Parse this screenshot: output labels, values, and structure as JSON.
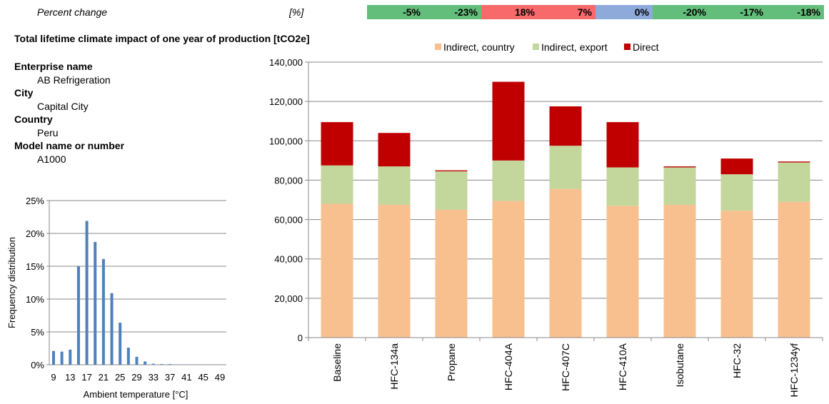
{
  "percent_change": {
    "label": "Percent change",
    "unit": "[%]",
    "colors": {
      "green": "#63be7b",
      "red": "#f8696b",
      "blue": "#8eaadb"
    },
    "cells": [
      {
        "text": "-5%",
        "color": "green"
      },
      {
        "text": "-23%",
        "color": "green"
      },
      {
        "text": "18%",
        "color": "red"
      },
      {
        "text": "7%",
        "color": "red"
      },
      {
        "text": "0%",
        "color": "blue"
      },
      {
        "text": "-20%",
        "color": "green"
      },
      {
        "text": "-17%",
        "color": "green"
      },
      {
        "text": "-18%",
        "color": "green"
      }
    ]
  },
  "title": "Total lifetime climate impact of one year of production [tCO2e]",
  "info": {
    "enterprise_label": "Enterprise name",
    "enterprise_value": "AB Refrigeration",
    "city_label": "City",
    "city_value": "Capital City",
    "country_label": "Country",
    "country_value": "Peru",
    "model_label": "Model name or number",
    "model_value": "A1000"
  },
  "chart_data": [
    {
      "type": "bar",
      "stacked": true,
      "categories": [
        "Baseline",
        "HFC-134a",
        "Propane",
        "HFC-404A",
        "HFC-407C",
        "HFC-410A",
        "Isobutane",
        "HFC-32",
        "HFC-1234yf"
      ],
      "series": [
        {
          "name": "Indirect, country",
          "color": "#f8c08f",
          "values": [
            68000,
            67500,
            65000,
            69500,
            75500,
            67000,
            67500,
            64500,
            69000
          ]
        },
        {
          "name": "Indirect, export",
          "color": "#c3d69b",
          "values": [
            19500,
            19500,
            19500,
            20500,
            22000,
            19500,
            19000,
            18500,
            20000
          ]
        },
        {
          "name": "Direct",
          "color": "#c00000",
          "values": [
            22000,
            17000,
            500,
            40000,
            20000,
            23000,
            500,
            8000,
            500
          ]
        }
      ],
      "ylim": [
        0,
        140000
      ],
      "yticks": [
        "0",
        "20,000",
        "40,000",
        "60,000",
        "80,000",
        "100,000",
        "120,000",
        "140,000"
      ],
      "grid": true,
      "legend": "top"
    },
    {
      "type": "bar",
      "xlabel": "Ambient temperature [°C]",
      "ylabel": "Frequency distribution",
      "color": "#4f81bd",
      "x": [
        9,
        10,
        11,
        12,
        13,
        14,
        15,
        16,
        17,
        18,
        19,
        20,
        21,
        22,
        23,
        24,
        25,
        26,
        27,
        28,
        29,
        30,
        31,
        32,
        33,
        34,
        35,
        36,
        37,
        38,
        39,
        40,
        41,
        42,
        43,
        44,
        45,
        46,
        47,
        48,
        49
      ],
      "values": [
        0.021,
        0,
        0.02,
        0,
        0.023,
        0,
        0.15,
        0,
        0.219,
        0,
        0.187,
        0,
        0.161,
        0,
        0.109,
        0,
        0.064,
        0,
        0.026,
        0,
        0.012,
        0,
        0.005,
        0,
        0.0015,
        0,
        0.001,
        0,
        0.001,
        0,
        0.0005,
        0,
        0,
        0,
        0,
        0,
        0,
        0,
        0,
        0,
        0
      ],
      "xticks": [
        "9",
        "13",
        "17",
        "21",
        "25",
        "29",
        "33",
        "37",
        "41",
        "45",
        "49"
      ],
      "yticks": [
        "0%",
        "5%",
        "10%",
        "15%",
        "20%",
        "25%"
      ],
      "ylim": [
        0,
        0.25
      ],
      "grid": true
    }
  ]
}
